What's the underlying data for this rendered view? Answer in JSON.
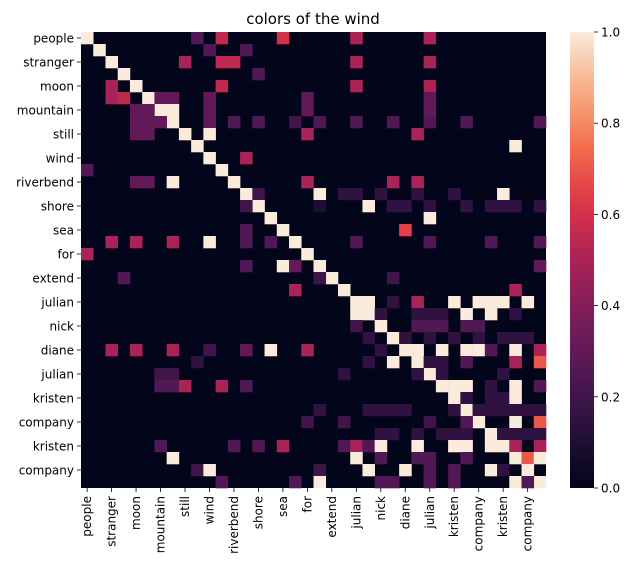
{
  "chart_data": {
    "type": "heatmap",
    "title": "colors of the wind",
    "xlabel": "",
    "ylabel": "",
    "x_tick_labels": [
      "people",
      "stranger",
      "moon",
      "mountain",
      "still",
      "wind",
      "riverbend",
      "shore",
      "sea",
      "for",
      "extend",
      "julian",
      "nick",
      "diane",
      "julian",
      "kristen",
      "company",
      "kristen",
      "company"
    ],
    "y_tick_labels": [
      "people",
      "stranger",
      "moon",
      "mountain",
      "still",
      "wind",
      "riverbend",
      "shore",
      "sea",
      "for",
      "extend",
      "julian",
      "nick",
      "diane",
      "julian",
      "kristen",
      "company",
      "kristen",
      "company"
    ],
    "n_rows": 38,
    "n_cols": 38,
    "vmin": 0,
    "vmax": 1,
    "colorbar_ticks": [
      "0.0",
      "0.2",
      "0.4",
      "0.6",
      "0.8",
      "1.0"
    ],
    "colormap": "rocket",
    "cells": [
      [
        0,
        0,
        1
      ],
      [
        0,
        9,
        0.25
      ],
      [
        0,
        16,
        0.6
      ],
      [
        0,
        11,
        0.55
      ],
      [
        0,
        22,
        0.5
      ],
      [
        0,
        28,
        0.5
      ],
      [
        1,
        1,
        1
      ],
      [
        1,
        10,
        0.25
      ],
      [
        1,
        13,
        0.25
      ],
      [
        2,
        2,
        1
      ],
      [
        2,
        8,
        0.5
      ],
      [
        2,
        11,
        0.55
      ],
      [
        2,
        12,
        0.55
      ],
      [
        2,
        22,
        0.5
      ],
      [
        2,
        28,
        0.5
      ],
      [
        3,
        3,
        1
      ],
      [
        3,
        14,
        0.25
      ],
      [
        4,
        4,
        1
      ],
      [
        4,
        2,
        0.5
      ],
      [
        4,
        11,
        0.55
      ],
      [
        4,
        22,
        0.5
      ],
      [
        4,
        28,
        0.5
      ],
      [
        5,
        5,
        1
      ],
      [
        5,
        2,
        0.5
      ],
      [
        5,
        3,
        0.55
      ],
      [
        5,
        6,
        0.3
      ],
      [
        5,
        7,
        0.3
      ],
      [
        5,
        10,
        0.3
      ],
      [
        5,
        18,
        0.3
      ],
      [
        5,
        28,
        0.3
      ],
      [
        6,
        6,
        1
      ],
      [
        6,
        4,
        0.3
      ],
      [
        6,
        5,
        0.3
      ],
      [
        6,
        7,
        1
      ],
      [
        6,
        10,
        0.3
      ],
      [
        6,
        18,
        0.3
      ],
      [
        6,
        28,
        0.3
      ],
      [
        7,
        7,
        1
      ],
      [
        7,
        4,
        0.3
      ],
      [
        7,
        5,
        0.3
      ],
      [
        7,
        6,
        0.3
      ],
      [
        7,
        10,
        0.3
      ],
      [
        7,
        12,
        0.25
      ],
      [
        7,
        14,
        0.25
      ],
      [
        7,
        17,
        0.2
      ],
      [
        7,
        19,
        0.25
      ],
      [
        7,
        22,
        0.25
      ],
      [
        7,
        25,
        0.25
      ],
      [
        7,
        28,
        0.25
      ],
      [
        7,
        31,
        0.25
      ],
      [
        7,
        37,
        0.25
      ],
      [
        8,
        8,
        1
      ],
      [
        8,
        4,
        0.3
      ],
      [
        8,
        5,
        0.3
      ],
      [
        8,
        10,
        1
      ],
      [
        8,
        18,
        0.5
      ],
      [
        8,
        27,
        0.5
      ],
      [
        9,
        9,
        1
      ],
      [
        9,
        35,
        1
      ],
      [
        10,
        10,
        1
      ],
      [
        10,
        13,
        0.5
      ],
      [
        11,
        11,
        1
      ],
      [
        11,
        0,
        0.25
      ],
      [
        12,
        12,
        1
      ],
      [
        12,
        4,
        0.3
      ],
      [
        12,
        5,
        0.3
      ],
      [
        12,
        7,
        1
      ],
      [
        12,
        18,
        0.5
      ],
      [
        12,
        25,
        0.5
      ],
      [
        12,
        27,
        0.5
      ],
      [
        13,
        13,
        1
      ],
      [
        13,
        14,
        0.2
      ],
      [
        13,
        19,
        1
      ],
      [
        13,
        21,
        0.15
      ],
      [
        13,
        22,
        0.15
      ],
      [
        13,
        24,
        0.15
      ],
      [
        13,
        27,
        0.15
      ],
      [
        13,
        30,
        0.15
      ],
      [
        13,
        34,
        1
      ],
      [
        14,
        14,
        1
      ],
      [
        14,
        13,
        0.2
      ],
      [
        14,
        19,
        0.1
      ],
      [
        14,
        23,
        1
      ],
      [
        14,
        25,
        0.15
      ],
      [
        14,
        26,
        0.15
      ],
      [
        14,
        28,
        0.15
      ],
      [
        14,
        31,
        0.15
      ],
      [
        14,
        33,
        0.15
      ],
      [
        14,
        34,
        0.15
      ],
      [
        14,
        35,
        0.15
      ],
      [
        14,
        37,
        0.15
      ],
      [
        15,
        15,
        1
      ],
      [
        15,
        28,
        1
      ],
      [
        16,
        16,
        1
      ],
      [
        16,
        13,
        0.25
      ],
      [
        16,
        26,
        0.65
      ],
      [
        17,
        17,
        1
      ],
      [
        17,
        2,
        0.5
      ],
      [
        17,
        4,
        0.5
      ],
      [
        17,
        7,
        0.5
      ],
      [
        17,
        10,
        1
      ],
      [
        17,
        13,
        0.25
      ],
      [
        17,
        15,
        0.25
      ],
      [
        17,
        22,
        0.25
      ],
      [
        17,
        28,
        0.25
      ],
      [
        17,
        33,
        0.25
      ],
      [
        17,
        37,
        0.25
      ],
      [
        18,
        18,
        1
      ],
      [
        18,
        0,
        0.5
      ],
      [
        19,
        19,
        1
      ],
      [
        19,
        13,
        0.25
      ],
      [
        19,
        16,
        1
      ],
      [
        19,
        17,
        0.3
      ],
      [
        19,
        37,
        0.3
      ],
      [
        20,
        20,
        1
      ],
      [
        20,
        25,
        0.2
      ],
      [
        20,
        19,
        0.2
      ],
      [
        20,
        3,
        0.25
      ],
      [
        21,
        21,
        1
      ],
      [
        21,
        17,
        0.5
      ],
      [
        21,
        35,
        0.5
      ],
      [
        22,
        22,
        1
      ],
      [
        22,
        27,
        0.5
      ],
      [
        22,
        33,
        1
      ]
    ],
    "extra_cells": [
      [
        22,
        23,
        1
      ],
      [
        22,
        25,
        0.15
      ],
      [
        22,
        30,
        1
      ],
      [
        22,
        32,
        1
      ],
      [
        22,
        34,
        1
      ],
      [
        22,
        36,
        1
      ],
      [
        23,
        23,
        1
      ],
      [
        23,
        22,
        1
      ],
      [
        23,
        24,
        0.15
      ],
      [
        23,
        27,
        0.15
      ],
      [
        23,
        28,
        0.15
      ],
      [
        23,
        29,
        0.15
      ],
      [
        23,
        31,
        1
      ],
      [
        23,
        33,
        1
      ],
      [
        23,
        35,
        0.15
      ],
      [
        24,
        24,
        1
      ],
      [
        24,
        22,
        0.2
      ],
      [
        24,
        27,
        0.25
      ],
      [
        24,
        28,
        0.25
      ],
      [
        24,
        29,
        0.25
      ],
      [
        24,
        31,
        0.25
      ],
      [
        24,
        32,
        0.25
      ],
      [
        25,
        25,
        1
      ],
      [
        25,
        23,
        0.15
      ],
      [
        25,
        26,
        0.15
      ],
      [
        25,
        28,
        0.15
      ],
      [
        25,
        30,
        0.15
      ],
      [
        25,
        32,
        0.15
      ],
      [
        25,
        34,
        0.15
      ],
      [
        25,
        35,
        0.15
      ],
      [
        25,
        36,
        0.15
      ],
      [
        26,
        26,
        1
      ],
      [
        26,
        2,
        0.5
      ],
      [
        26,
        4,
        0.5
      ],
      [
        26,
        7,
        0.5
      ],
      [
        26,
        10,
        0.2
      ],
      [
        26,
        13,
        0.3
      ],
      [
        26,
        15,
        1
      ],
      [
        26,
        18,
        0.5
      ],
      [
        26,
        24,
        0.15
      ],
      [
        26,
        27,
        1
      ],
      [
        26,
        29,
        1
      ],
      [
        26,
        31,
        1
      ],
      [
        26,
        32,
        1
      ],
      [
        26,
        33,
        0.25
      ],
      [
        26,
        35,
        1
      ],
      [
        26,
        37,
        0.5
      ],
      [
        27,
        27,
        1
      ],
      [
        27,
        9,
        0.15
      ],
      [
        27,
        23,
        0.15
      ],
      [
        27,
        25,
        1
      ],
      [
        27,
        28,
        0.15
      ],
      [
        27,
        29,
        0.15
      ],
      [
        27,
        31,
        0.25
      ],
      [
        27,
        35,
        0.5
      ],
      [
        27,
        37,
        0.7
      ],
      [
        28,
        28,
        1
      ],
      [
        28,
        6,
        0.2
      ],
      [
        28,
        7,
        0.2
      ],
      [
        28,
        21,
        0.15
      ],
      [
        28,
        27,
        0.15
      ],
      [
        28,
        29,
        0.15
      ],
      [
        28,
        34,
        0.15
      ],
      [
        29,
        29,
        1
      ],
      [
        29,
        6,
        0.25
      ],
      [
        29,
        7,
        0.25
      ],
      [
        29,
        8,
        0.5
      ],
      [
        29,
        11,
        0.5
      ],
      [
        29,
        13,
        0.25
      ],
      [
        29,
        30,
        1
      ],
      [
        29,
        31,
        1
      ],
      [
        29,
        33,
        0.15
      ],
      [
        29,
        35,
        1
      ],
      [
        29,
        37,
        0.25
      ],
      [
        30,
        30,
        1
      ],
      [
        30,
        31,
        0.15
      ],
      [
        30,
        33,
        0.15
      ],
      [
        30,
        34,
        0.15
      ],
      [
        30,
        35,
        1
      ],
      [
        31,
        31,
        1
      ],
      [
        31,
        19,
        0.15
      ],
      [
        31,
        23,
        0.15
      ],
      [
        31,
        24,
        0.15
      ],
      [
        31,
        25,
        0.15
      ],
      [
        31,
        26,
        0.15
      ],
      [
        31,
        30,
        0.15
      ],
      [
        31,
        32,
        0.15
      ],
      [
        31,
        33,
        0.15
      ],
      [
        31,
        34,
        0.15
      ],
      [
        31,
        35,
        0.15
      ],
      [
        31,
        36,
        0.15
      ],
      [
        31,
        37,
        0.15
      ],
      [
        32,
        32,
        1
      ],
      [
        32,
        18,
        0.2
      ],
      [
        32,
        21,
        0.2
      ],
      [
        32,
        28,
        0.2
      ],
      [
        32,
        31,
        0.25
      ],
      [
        32,
        35,
        1
      ],
      [
        32,
        37,
        0.7
      ],
      [
        33,
        33,
        1
      ],
      [
        33,
        24,
        0.15
      ],
      [
        33,
        25,
        0.15
      ],
      [
        33,
        27,
        0.15
      ],
      [
        33,
        29,
        0.15
      ],
      [
        33,
        30,
        0.15
      ],
      [
        33,
        31,
        0.15
      ],
      [
        33,
        34,
        0.15
      ],
      [
        33,
        35,
        0.15
      ],
      [
        33,
        36,
        0.15
      ],
      [
        33,
        37,
        0.15
      ],
      [
        34,
        34,
        1
      ],
      [
        34,
        6,
        0.25
      ],
      [
        34,
        12,
        0.25
      ],
      [
        34,
        14,
        0.25
      ],
      [
        34,
        16,
        0.5
      ],
      [
        34,
        21,
        0.25
      ],
      [
        34,
        22,
        0.5
      ],
      [
        34,
        23,
        0.25
      ],
      [
        34,
        24,
        1
      ],
      [
        34,
        27,
        1
      ],
      [
        34,
        30,
        1
      ],
      [
        34,
        31,
        1
      ],
      [
        34,
        33,
        1
      ],
      [
        34,
        35,
        0.5
      ],
      [
        34,
        37,
        0.5
      ],
      [
        35,
        35,
        1
      ],
      [
        35,
        7,
        1
      ],
      [
        35,
        22,
        1
      ],
      [
        35,
        24,
        0.25
      ],
      [
        35,
        27,
        0.25
      ],
      [
        35,
        28,
        0.25
      ],
      [
        35,
        31,
        0.25
      ],
      [
        35,
        36,
        0.7
      ],
      [
        35,
        37,
        1
      ],
      [
        36,
        36,
        1
      ],
      [
        36,
        9,
        0.2
      ],
      [
        36,
        10,
        1
      ],
      [
        36,
        19,
        0.2
      ],
      [
        36,
        23,
        1
      ],
      [
        36,
        26,
        1
      ],
      [
        36,
        28,
        0.25
      ],
      [
        36,
        30,
        0.25
      ],
      [
        36,
        33,
        1
      ],
      [
        36,
        34,
        0.15
      ],
      [
        37,
        37,
        1
      ],
      [
        37,
        11,
        0.25
      ],
      [
        37,
        17,
        0.25
      ],
      [
        37,
        19,
        1
      ],
      [
        37,
        24,
        0.25
      ],
      [
        37,
        25,
        0.25
      ],
      [
        37,
        28,
        0.25
      ],
      [
        37,
        30,
        0.25
      ],
      [
        37,
        35,
        1
      ],
      [
        37,
        36,
        0.25
      ]
    ]
  }
}
